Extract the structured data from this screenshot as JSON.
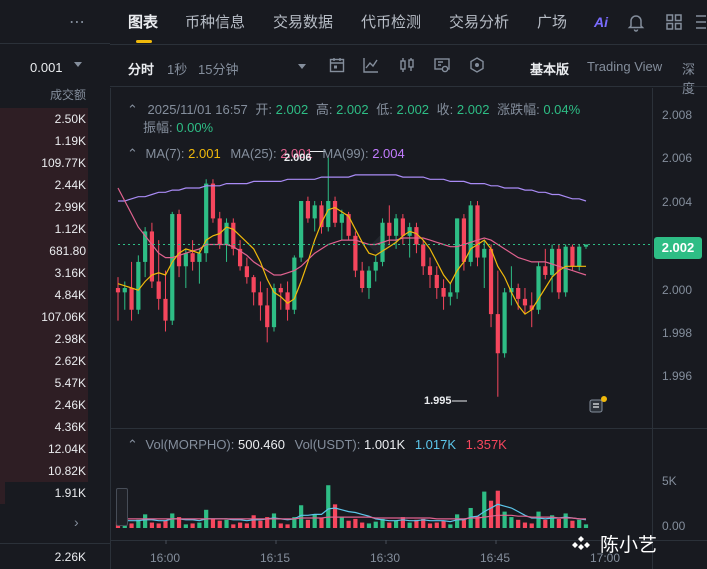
{
  "order_book": {
    "precision": "0.001",
    "column_header": "成交额",
    "rows": [
      {
        "value": "2.50K",
        "fill": 0.999
      },
      {
        "value": "1.19K",
        "fill": 0.999
      },
      {
        "value": "109.77K",
        "fill": 0.999
      },
      {
        "value": "2.44K",
        "fill": 0.999
      },
      {
        "value": "2.99K",
        "fill": 0.999
      },
      {
        "value": "1.12K",
        "fill": 0.999
      },
      {
        "value": "681.80",
        "fill": 0.999
      },
      {
        "value": "3.16K",
        "fill": 0.999
      },
      {
        "value": "4.84K",
        "fill": 0.999
      },
      {
        "value": "107.06K",
        "fill": 0.999
      },
      {
        "value": "2.98K",
        "fill": 0.999
      },
      {
        "value": "2.62K",
        "fill": 0.999
      },
      {
        "value": "5.47K",
        "fill": 0.999
      },
      {
        "value": "2.46K",
        "fill": 0.999
      },
      {
        "value": "4.36K",
        "fill": 0.999
      },
      {
        "value": "12.04K",
        "fill": 0.999
      },
      {
        "value": "10.82K",
        "fill": 0.999
      },
      {
        "value": "1.91K",
        "fill": 0.06
      }
    ],
    "last_value": "2.26K"
  },
  "tabs": [
    "图表",
    "币种信息",
    "交易数据",
    "代币检测",
    "交易分析",
    "广场"
  ],
  "ai_label": "Ai",
  "toolbar": {
    "intervals": [
      "分时",
      "1秒",
      "15分钟"
    ],
    "views": [
      "基本版",
      "Trading View",
      "深度"
    ]
  },
  "ohlc": {
    "datetime": "2025/11/01 16:57",
    "open_label": "开:",
    "open": "2.002",
    "high_label": "高:",
    "high": "2.002",
    "low_label": "低:",
    "low": "2.002",
    "close_label": "收:",
    "close": "2.002",
    "change_label": "涨跌幅:",
    "change": "0.04%",
    "amp_label": "振幅:",
    "amp": "0.00%"
  },
  "ma": {
    "ma7_label": "MA(7):",
    "ma7": "2.001",
    "ma25_label": "MA(25):",
    "ma25": "2.001",
    "ma99_label": "MA(99):",
    "ma99": "2.004"
  },
  "vol": {
    "vol1_label": "Vol(MORPHO):",
    "vol1": "500.460",
    "vol2_label": "Vol(USDT):",
    "vol2": "1.001K",
    "vol3": "1.017K",
    "vol4": "1.357K"
  },
  "price_axis": [
    "2.008",
    "2.006",
    "2.004",
    "2.002",
    "2.000",
    "1.998",
    "1.996"
  ],
  "last_price": "2.002",
  "volume_axis": [
    "5K",
    "0.00"
  ],
  "time_axis": [
    "16:00",
    "16:15",
    "16:30",
    "16:45",
    "17:00"
  ],
  "annotations": {
    "high": "2.006",
    "low": "1.995"
  },
  "watermark": "陈小艺",
  "colors": {
    "up": "#2ebd85",
    "down": "#f6465d",
    "ma7": "#f0b90b",
    "ma25": "#e0628f",
    "ma99": "#a98bf5",
    "accent": "#f0b90b"
  },
  "chart_data": {
    "type": "candlestick",
    "x_range": [
      "15:55",
      "16:57"
    ],
    "ylim": [
      1.994,
      2.009
    ],
    "candles": [
      {
        "o": 2.0,
        "h": 2.0005,
        "l": 1.9985,
        "c": 1.9998
      },
      {
        "o": 1.9998,
        "h": 2.0003,
        "l": 1.999,
        "c": 2.0
      },
      {
        "o": 2.0,
        "h": 2.0012,
        "l": 1.9985,
        "c": 1.999
      },
      {
        "o": 1.999,
        "h": 2.0015,
        "l": 1.9988,
        "c": 2.0012
      },
      {
        "o": 2.0012,
        "h": 2.0028,
        "l": 2.0005,
        "c": 2.0026
      },
      {
        "o": 2.0026,
        "h": 2.003,
        "l": 2.0,
        "c": 2.0003
      },
      {
        "o": 2.0003,
        "h": 2.0022,
        "l": 1.999,
        "c": 1.9995
      },
      {
        "o": 1.9995,
        "h": 2.0008,
        "l": 1.998,
        "c": 1.9985
      },
      {
        "o": 1.9985,
        "h": 2.0035,
        "l": 1.9983,
        "c": 2.0034
      },
      {
        "o": 2.0034,
        "h": 2.0036,
        "l": 2.0005,
        "c": 2.001
      },
      {
        "o": 2.001,
        "h": 2.0018,
        "l": 2.0,
        "c": 2.0016
      },
      {
        "o": 2.0016,
        "h": 2.0022,
        "l": 2.0008,
        "c": 2.0012
      },
      {
        "o": 2.0012,
        "h": 2.0018,
        "l": 2.0002,
        "c": 2.0016
      },
      {
        "o": 2.0016,
        "h": 2.005,
        "l": 2.0012,
        "c": 2.0048
      },
      {
        "o": 2.0048,
        "h": 2.005,
        "l": 2.003,
        "c": 2.0032
      },
      {
        "o": 2.0032,
        "h": 2.0035,
        "l": 2.0018,
        "c": 2.002
      },
      {
        "o": 2.002,
        "h": 2.0032,
        "l": 2.0012,
        "c": 2.003
      },
      {
        "o": 2.003,
        "h": 2.0032,
        "l": 2.0015,
        "c": 2.0018
      },
      {
        "o": 2.0018,
        "h": 2.0022,
        "l": 2.0008,
        "c": 2.001
      },
      {
        "o": 2.001,
        "h": 2.0014,
        "l": 2.0002,
        "c": 2.0005
      },
      {
        "o": 2.0005,
        "h": 2.0006,
        "l": 1.9992,
        "c": 1.9998
      },
      {
        "o": 1.9998,
        "h": 2.0003,
        "l": 1.9985,
        "c": 1.9992
      },
      {
        "o": 1.9992,
        "h": 2.0,
        "l": 1.9975,
        "c": 1.9982
      },
      {
        "o": 1.9982,
        "h": 2.0002,
        "l": 1.998,
        "c": 2.0
      },
      {
        "o": 2.0,
        "h": 2.0002,
        "l": 1.999,
        "c": 1.9998
      },
      {
        "o": 1.9998,
        "h": 2.0003,
        "l": 1.9985,
        "c": 1.999
      },
      {
        "o": 1.999,
        "h": 2.0015,
        "l": 1.9988,
        "c": 2.0014
      },
      {
        "o": 2.0014,
        "h": 2.004,
        "l": 2.0012,
        "c": 2.004
      },
      {
        "o": 2.004,
        "h": 2.0042,
        "l": 2.003,
        "c": 2.0032
      },
      {
        "o": 2.0032,
        "h": 2.004,
        "l": 2.0026,
        "c": 2.0038
      },
      {
        "o": 2.0038,
        "h": 2.004,
        "l": 2.0025,
        "c": 2.0028
      },
      {
        "o": 2.0028,
        "h": 2.006,
        "l": 2.0026,
        "c": 2.004
      },
      {
        "o": 2.004,
        "h": 2.0042,
        "l": 2.0028,
        "c": 2.003
      },
      {
        "o": 2.003,
        "h": 2.0036,
        "l": 2.0022,
        "c": 2.0034
      },
      {
        "o": 2.0034,
        "h": 2.0035,
        "l": 2.0022,
        "c": 2.0024
      },
      {
        "o": 2.0024,
        "h": 2.0026,
        "l": 2.0005,
        "c": 2.0008
      },
      {
        "o": 2.0008,
        "h": 2.0012,
        "l": 1.9998,
        "c": 2.0
      },
      {
        "o": 2.0,
        "h": 2.001,
        "l": 1.9995,
        "c": 2.0008
      },
      {
        "o": 2.0008,
        "h": 2.0015,
        "l": 2.0003,
        "c": 2.0012
      },
      {
        "o": 2.0012,
        "h": 2.0032,
        "l": 2.001,
        "c": 2.003
      },
      {
        "o": 2.003,
        "h": 2.0038,
        "l": 2.002,
        "c": 2.0024
      },
      {
        "o": 2.0024,
        "h": 2.0034,
        "l": 2.0018,
        "c": 2.0032
      },
      {
        "o": 2.0032,
        "h": 2.0034,
        "l": 2.002,
        "c": 2.0024
      },
      {
        "o": 2.0024,
        "h": 2.003,
        "l": 2.0014,
        "c": 2.0028
      },
      {
        "o": 2.0028,
        "h": 2.003,
        "l": 2.0016,
        "c": 2.002
      },
      {
        "o": 2.002,
        "h": 2.0022,
        "l": 2.0006,
        "c": 2.001
      },
      {
        "o": 2.001,
        "h": 2.0014,
        "l": 2.0,
        "c": 2.0006
      },
      {
        "o": 2.0006,
        "h": 2.001,
        "l": 1.9995,
        "c": 2.0
      },
      {
        "o": 2.0,
        "h": 2.0004,
        "l": 1.999,
        "c": 1.9996
      },
      {
        "o": 1.9996,
        "h": 2.0002,
        "l": 1.9992,
        "c": 1.9998
      },
      {
        "o": 1.9998,
        "h": 2.0032,
        "l": 1.9995,
        "c": 2.0032
      },
      {
        "o": 2.0032,
        "h": 2.0034,
        "l": 2.0008,
        "c": 2.0012
      },
      {
        "o": 2.0012,
        "h": 2.004,
        "l": 2.001,
        "c": 2.0038
      },
      {
        "o": 2.0038,
        "h": 2.004,
        "l": 2.001,
        "c": 2.0014
      },
      {
        "o": 2.0014,
        "h": 2.0022,
        "l": 2.0,
        "c": 2.0018
      },
      {
        "o": 2.0018,
        "h": 2.002,
        "l": 1.9982,
        "c": 1.9988
      },
      {
        "o": 1.9988,
        "h": 2.0008,
        "l": 1.995,
        "c": 1.997
      },
      {
        "o": 1.997,
        "h": 2.0,
        "l": 1.9968,
        "c": 1.9998
      },
      {
        "o": 1.9998,
        "h": 2.001,
        "l": 1.9992,
        "c": 2.0
      },
      {
        "o": 2.0,
        "h": 2.0002,
        "l": 1.999,
        "c": 1.9995
      },
      {
        "o": 1.9995,
        "h": 2.0,
        "l": 1.9988,
        "c": 1.9992
      },
      {
        "o": 1.9992,
        "h": 1.9998,
        "l": 1.9982,
        "c": 1.999
      },
      {
        "o": 1.999,
        "h": 2.0012,
        "l": 1.9988,
        "c": 2.001
      },
      {
        "o": 2.001,
        "h": 2.0018,
        "l": 2.0004,
        "c": 2.0006
      },
      {
        "o": 2.0006,
        "h": 2.002,
        "l": 1.9998,
        "c": 2.0018
      },
      {
        "o": 2.0018,
        "h": 2.002,
        "l": 1.9995,
        "c": 1.9998
      },
      {
        "o": 1.9998,
        "h": 2.002,
        "l": 1.9996,
        "c": 2.0019
      },
      {
        "o": 2.0019,
        "h": 2.002,
        "l": 2.0008,
        "c": 2.001
      },
      {
        "o": 2.001,
        "h": 2.002,
        "l": 2.0008,
        "c": 2.0019
      },
      {
        "o": 2.0019,
        "h": 2.002,
        "l": 2.0018,
        "c": 2.002
      }
    ],
    "ma7": [
      2.0002,
      2.0001,
      2.0,
      1.9999,
      2.0003,
      2.0006,
      2.0007,
      2.0006,
      2.0012,
      2.0016,
      2.0018,
      2.0017,
      2.0016,
      2.0022,
      2.0024,
      2.0025,
      2.0028,
      2.0027,
      2.0024,
      2.0021,
      2.0018,
      2.0012,
      2.0004,
      1.9998,
      1.9996,
      1.9993,
      1.9995,
      2.0003,
      2.0012,
      2.0022,
      2.003,
      2.0036,
      2.0037,
      2.0035,
      2.0033,
      2.0027,
      2.0021,
      2.0016,
      2.0015,
      2.0017,
      2.0019,
      2.0021,
      2.0024,
      2.0026,
      2.0025,
      2.0022,
      2.0018,
      2.0012,
      2.0006,
      2.0002,
      2.0008,
      2.0012,
      2.0018,
      2.002,
      2.0022,
      2.0018,
      2.001,
      2.0005,
      1.9998,
      1.9992,
      1.9988,
      1.999,
      1.9995,
      2.0,
      2.0005,
      2.0008,
      2.001,
      2.001,
      2.001,
      2.001
    ],
    "ma25": [
      2.0046,
      2.004,
      2.0034,
      2.0028,
      2.0024,
      2.002,
      2.0016,
      2.0014,
      2.0014,
      2.0015,
      2.0016,
      2.0017,
      2.0018,
      2.002,
      2.002,
      2.002,
      2.002,
      2.0019,
      2.0017,
      2.0015,
      2.0012,
      2.001,
      2.0008,
      2.0006,
      2.0006,
      2.0007,
      2.0008,
      2.001,
      2.0013,
      2.0016,
      2.0018,
      2.002,
      2.0021,
      2.0022,
      2.0022,
      2.0022,
      2.0021,
      2.002,
      2.002,
      2.0021,
      2.0022,
      2.0022,
      2.0023,
      2.0023,
      2.0023,
      2.0023,
      2.0022,
      2.0021,
      2.002,
      2.0019,
      2.0019,
      2.002,
      2.0021,
      2.0022,
      2.0023,
      2.0022,
      2.002,
      2.0018,
      2.0016,
      2.0014,
      2.0013,
      2.0012,
      2.0012,
      2.0012,
      2.0011,
      2.001,
      2.0009,
      2.0008,
      2.0007,
      2.0006
    ],
    "ma99": [
      2.004,
      2.004,
      2.0041,
      2.0042,
      2.0042,
      2.0043,
      2.0044,
      2.0044,
      2.0045,
      2.0045,
      2.0046,
      2.0046,
      2.0046,
      2.0047,
      2.0047,
      2.0047,
      2.0048,
      2.0048,
      2.0048,
      2.0048,
      2.0049,
      2.0049,
      2.0049,
      2.0049,
      2.0049,
      2.005,
      2.005,
      2.005,
      2.005,
      2.005,
      2.0051,
      2.0051,
      2.0051,
      2.0051,
      2.0051,
      2.0052,
      2.0052,
      2.0052,
      2.0052,
      2.0052,
      2.0052,
      2.0052,
      2.0051,
      2.0051,
      2.0051,
      2.0051,
      2.005,
      2.005,
      2.005,
      2.0049,
      2.0049,
      2.0049,
      2.0048,
      2.0048,
      2.0048,
      2.0047,
      2.0047,
      2.0046,
      2.0046,
      2.0046,
      2.0045,
      2.0045,
      2.0044,
      2.0044,
      2.0043,
      2.0043,
      2.0042,
      2.0041,
      2.0041,
      2.004
    ],
    "volume": [
      0.7,
      0.3,
      0.5,
      0.9,
      1.5,
      0.6,
      0.5,
      0.8,
      1.6,
      1.2,
      0.4,
      0.5,
      0.6,
      2.0,
      1.0,
      0.8,
      0.9,
      0.4,
      0.6,
      0.5,
      1.4,
      0.8,
      1.2,
      1.6,
      0.5,
      0.4,
      1.2,
      2.5,
      0.9,
      1.5,
      1.1,
      4.7,
      2.6,
      1.2,
      0.8,
      1.0,
      0.6,
      0.5,
      0.7,
      1.0,
      0.6,
      0.8,
      1.2,
      0.6,
      0.9,
      1.0,
      0.5,
      0.6,
      0.8,
      0.4,
      1.5,
      0.9,
      2.2,
      1.3,
      4.0,
      3.0,
      4.1,
      1.8,
      1.2,
      0.9,
      0.6,
      0.5,
      1.8,
      0.9,
      1.4,
      1.0,
      1.6,
      0.8,
      0.9,
      0.4
    ],
    "vol_ma1": [
      0.8,
      0.8,
      0.8,
      0.8,
      0.9,
      0.9,
      0.8,
      0.8,
      1.0,
      1.0,
      0.9,
      0.9,
      0.8,
      1.0,
      1.0,
      1.0,
      1.0,
      0.9,
      0.9,
      0.8,
      0.9,
      0.9,
      1.0,
      1.1,
      1.0,
      0.9,
      1.0,
      1.4,
      1.4,
      1.5,
      1.5,
      2.1,
      2.2,
      2.0,
      1.8,
      1.7,
      1.5,
      1.3,
      1.0,
      0.9,
      0.8,
      0.8,
      0.9,
      0.8,
      0.8,
      0.9,
      0.8,
      0.8,
      0.8,
      0.7,
      0.9,
      0.9,
      1.2,
      1.3,
      1.8,
      2.2,
      2.6,
      2.4,
      2.2,
      1.8,
      1.4,
      1.1,
      1.1,
      1.0,
      1.1,
      1.1,
      1.2,
      1.1,
      1.0,
      0.9
    ],
    "vol_ma2": [
      1.0,
      1.0,
      1.0,
      1.0,
      1.0,
      1.0,
      1.0,
      1.0,
      1.0,
      1.0,
      1.0,
      1.0,
      1.0,
      1.0,
      1.0,
      1.0,
      1.0,
      1.0,
      1.0,
      1.0,
      1.0,
      1.0,
      1.0,
      1.0,
      1.0,
      1.0,
      1.0,
      1.1,
      1.1,
      1.1,
      1.1,
      1.2,
      1.2,
      1.2,
      1.2,
      1.2,
      1.2,
      1.2,
      1.1,
      1.1,
      1.1,
      1.1,
      1.1,
      1.1,
      1.1,
      1.1,
      1.1,
      1.0,
      1.0,
      1.0,
      1.0,
      1.0,
      1.1,
      1.1,
      1.2,
      1.3,
      1.4,
      1.4,
      1.4,
      1.3,
      1.3,
      1.2,
      1.2,
      1.2,
      1.2,
      1.1,
      1.1,
      1.1,
      1.0,
      1.0
    ]
  }
}
